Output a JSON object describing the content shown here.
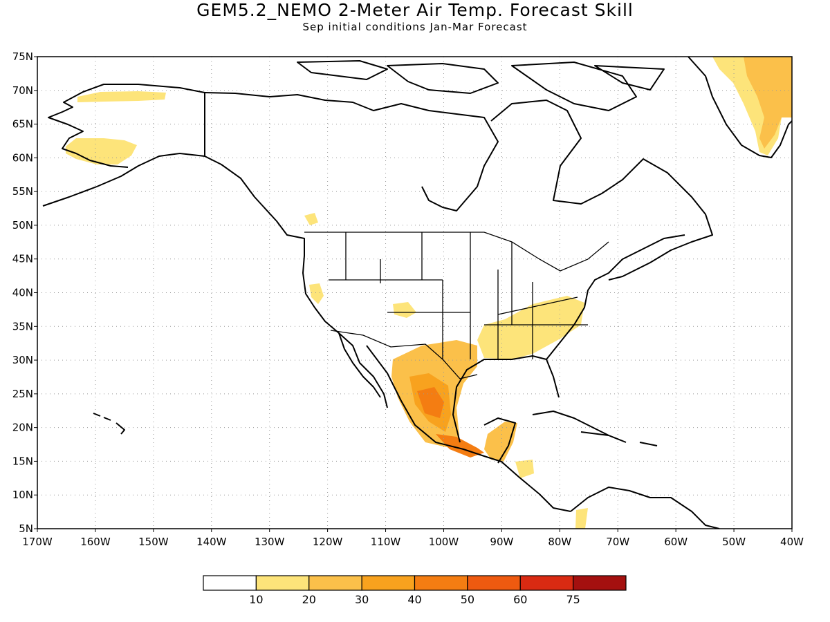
{
  "title": "GEM5.2_NEMO 2-Meter Air Temp. Forecast Skill",
  "subtitle": "Sep initial conditions  Jan-Mar Forecast",
  "map": {
    "lon_range": [
      -170,
      -40
    ],
    "lat_range": [
      5,
      75
    ],
    "lon_ticks": [
      "170W",
      "160W",
      "150W",
      "140W",
      "130W",
      "120W",
      "110W",
      "100W",
      "90W",
      "80W",
      "70W",
      "60W",
      "50W",
      "40W"
    ],
    "lat_ticks": [
      "75N",
      "70N",
      "65N",
      "60N",
      "55N",
      "50N",
      "45N",
      "40N",
      "35N",
      "30N",
      "25N",
      "20N",
      "15N",
      "10N",
      "5N"
    ],
    "grid": true
  },
  "colorbar": {
    "labels": [
      "10",
      "20",
      "30",
      "40",
      "50",
      "60",
      "75"
    ],
    "colors": [
      "#ffffff",
      "#fde47a",
      "#fbc04a",
      "#f8a21e",
      "#f47d12",
      "#ee5a10",
      "#d92a12",
      "#a4100f"
    ]
  },
  "chart_data": {
    "type": "heatmap",
    "title": "GEM5.2_NEMO 2-Meter Air Temp. Forecast Skill",
    "subtitle": "Sep initial conditions  Jan-Mar Forecast",
    "x_range": [
      -170,
      -40
    ],
    "y_range": [
      5,
      75
    ],
    "levels": [
      10,
      20,
      30,
      40,
      50,
      60,
      75
    ],
    "regions": [
      {
        "name": "Greenland",
        "level_range": [
          20,
          40
        ]
      },
      {
        "name": "Northern Alaska",
        "level_range": [
          10,
          20
        ]
      },
      {
        "name": "Southwest Alaska",
        "level_range": [
          10,
          20
        ]
      },
      {
        "name": "Southeast United States",
        "level_range": [
          10,
          20
        ]
      },
      {
        "name": "Northern Mexico",
        "level_range": [
          20,
          30
        ]
      },
      {
        "name": "Central Mexico",
        "level_range": [
          30,
          50
        ]
      },
      {
        "name": "Central America",
        "level_range": [
          10,
          40
        ]
      }
    ]
  }
}
